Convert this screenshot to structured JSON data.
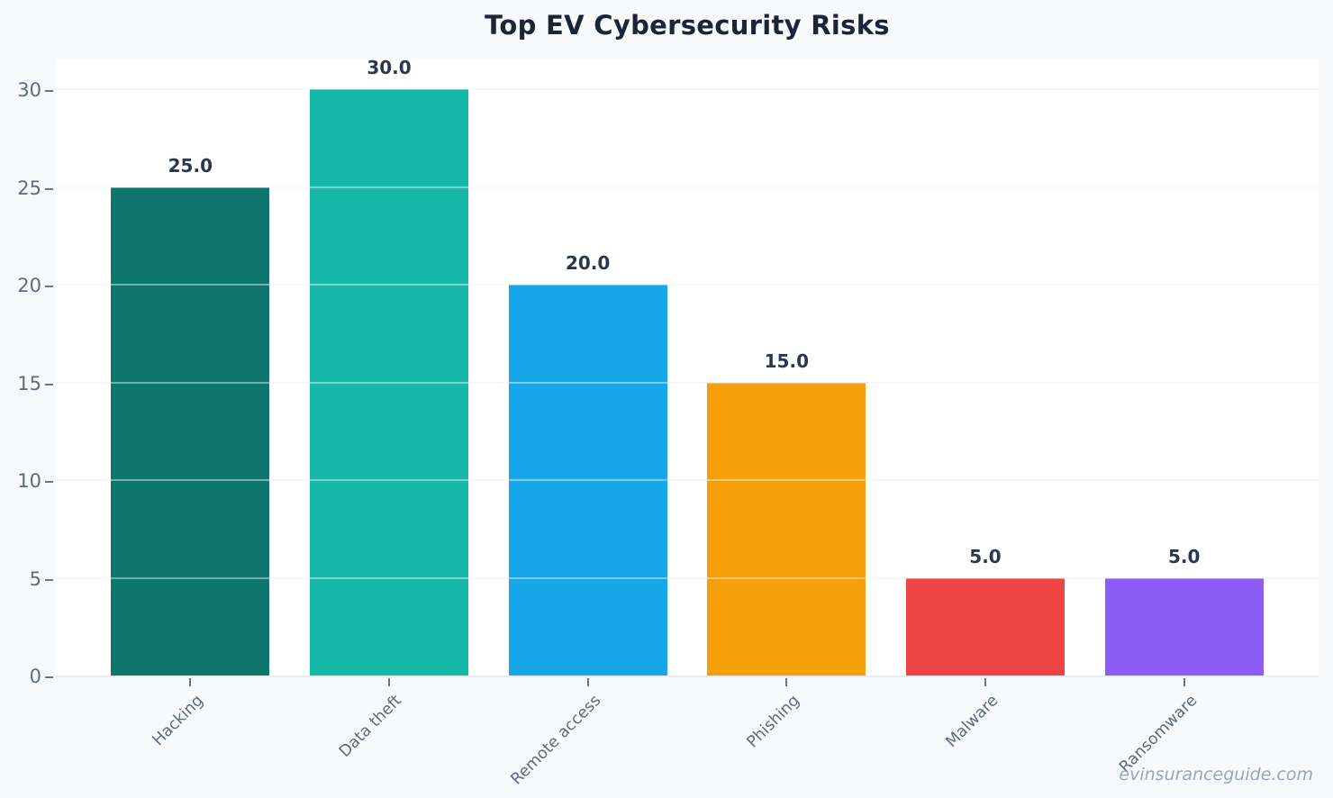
{
  "chart_data": {
    "type": "bar",
    "title": "Top EV Cybersecurity Risks",
    "categories": [
      "Hacking",
      "Data theft",
      "Remote access",
      "Phishing",
      "Malware",
      "Ransomware"
    ],
    "values": [
      25,
      30,
      20,
      15,
      5,
      5
    ],
    "value_labels": [
      "25.0",
      "30.0",
      "20.0",
      "15.0",
      "5.0",
      "5.0"
    ],
    "bar_colors": [
      "#0f766e",
      "#15b8a6",
      "#17a6e8",
      "#f5a00b",
      "#ef4444",
      "#8b5cf6"
    ],
    "y_ticks": [
      0,
      5,
      10,
      15,
      20,
      25,
      30
    ],
    "ylim": [
      0,
      31.66
    ],
    "xlabel": "",
    "ylabel": "",
    "grid": true,
    "legend": false,
    "watermark": "evinsuranceguide.com"
  },
  "colors": {
    "page_background": "#f7f9fb",
    "plot_background": "#ffffff",
    "title_text": "#1b2537",
    "value_label_text": "#2b3750",
    "axis_tick_text": "#5f6b7e",
    "watermark_text": "#9ba4bf"
  }
}
